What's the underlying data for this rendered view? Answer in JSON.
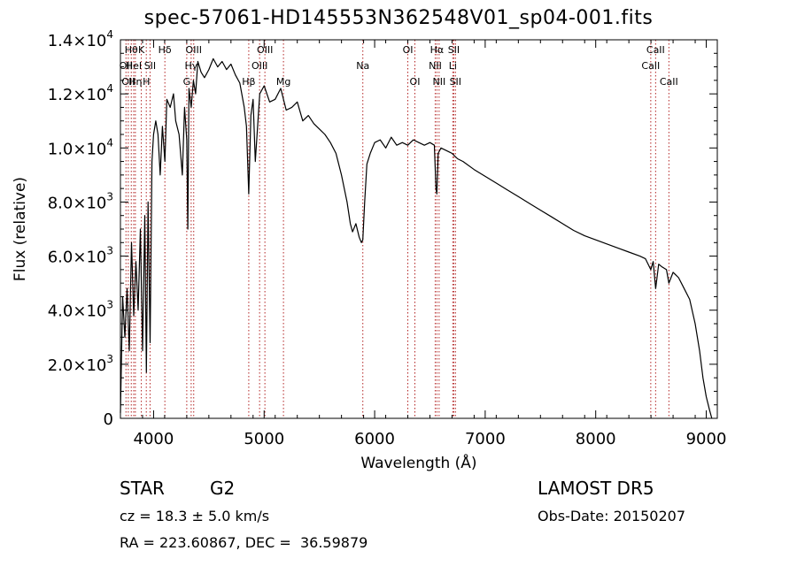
{
  "title": "spec-57061-HD145553N362548V01_sp04-001.fits",
  "info": {
    "class": "STAR",
    "subclass": "G2",
    "survey": "LAMOST DR5",
    "cz": "cz = 18.3 ± 5.0 km/s",
    "obs_date": "Obs-Date: 20150207",
    "coords": "RA = 223.60867, DEC =  36.59879"
  },
  "chart_data": {
    "type": "line",
    "title": "spec-57061-HD145553N362548V01_sp04-001.fits",
    "xlabel": "Wavelength (Å)",
    "ylabel": "Flux (relative)",
    "xlim": [
      3700,
      9100
    ],
    "ylim": [
      0,
      14000
    ],
    "x_ticks": [
      4000,
      5000,
      6000,
      7000,
      8000,
      9000
    ],
    "x_tick_labels": [
      "4000",
      "5000",
      "6000",
      "7000",
      "8000",
      "9000"
    ],
    "y_ticks": [
      0,
      2000,
      4000,
      6000,
      8000,
      10000,
      12000,
      14000
    ],
    "y_tick_labels": [
      {
        "mant": "0",
        "exp": ""
      },
      {
        "mant": "2.0×10",
        "exp": "3"
      },
      {
        "mant": "4.0×10",
        "exp": "3"
      },
      {
        "mant": "6.0×10",
        "exp": "3"
      },
      {
        "mant": "8.0×10",
        "exp": "3"
      },
      {
        "mant": "1.0×10",
        "exp": "4"
      },
      {
        "mant": "1.2×10",
        "exp": "4"
      },
      {
        "mant": "1.4×10",
        "exp": "4"
      }
    ],
    "line_color": "#000000",
    "marker_color": "#b22222",
    "series": [
      {
        "x": [
          3700,
          3720,
          3740,
          3760,
          3780,
          3800,
          3820,
          3840,
          3860,
          3880,
          3900,
          3920,
          3935,
          3950,
          3968,
          3985,
          4000,
          4020,
          4040,
          4060,
          4080,
          4102,
          4120,
          4150,
          4180,
          4200,
          4230,
          4260,
          4280,
          4300,
          4310,
          4320,
          4340,
          4360,
          4380,
          4400,
          4430,
          4460,
          4500,
          4540,
          4580,
          4620,
          4660,
          4700,
          4740,
          4780,
          4820,
          4840,
          4861,
          4880,
          4900,
          4920,
          4960,
          5000,
          5050,
          5100,
          5150,
          5200,
          5250,
          5300,
          5350,
          5400,
          5450,
          5500,
          5550,
          5600,
          5650,
          5700,
          5750,
          5780,
          5800,
          5830,
          5860,
          5880,
          5893,
          5910,
          5930,
          5960,
          6000,
          6050,
          6100,
          6150,
          6200,
          6250,
          6300,
          6350,
          6400,
          6450,
          6500,
          6540,
          6555,
          6563,
          6575,
          6600,
          6650,
          6700,
          6750,
          6800,
          6900,
          7000,
          7100,
          7200,
          7300,
          7400,
          7500,
          7600,
          7700,
          7800,
          7900,
          8000,
          8100,
          8200,
          8300,
          8400,
          8450,
          8498,
          8520,
          8542,
          8570,
          8600,
          8640,
          8662,
          8700,
          8750,
          8800,
          8850,
          8900,
          8940,
          8970,
          9000,
          9030,
          9050
        ],
        "y": [
          200,
          4500,
          3000,
          4800,
          2500,
          6500,
          3800,
          5800,
          4000,
          7000,
          2500,
          7500,
          1700,
          8000,
          2800,
          9500,
          10500,
          11000,
          10500,
          9000,
          10800,
          9500,
          11800,
          11500,
          12000,
          11000,
          10500,
          9000,
          11500,
          10300,
          7000,
          12200,
          11500,
          12500,
          12000,
          13200,
          12800,
          12600,
          12900,
          13300,
          13000,
          13200,
          12900,
          13100,
          12700,
          12400,
          11500,
          10800,
          8300,
          11200,
          11800,
          9500,
          12000,
          12300,
          11700,
          11800,
          12200,
          11400,
          11500,
          11700,
          11000,
          11200,
          10900,
          10700,
          10500,
          10200,
          9800,
          9000,
          8000,
          7200,
          6900,
          7200,
          6700,
          6500,
          6600,
          8000,
          9400,
          9800,
          10200,
          10300,
          10000,
          10400,
          10100,
          10200,
          10100,
          10300,
          10200,
          10100,
          10200,
          10100,
          8500,
          8300,
          9800,
          10000,
          9900,
          9800,
          9600,
          9500,
          9200,
          8950,
          8700,
          8450,
          8200,
          7950,
          7700,
          7450,
          7200,
          6950,
          6750,
          6600,
          6450,
          6300,
          6150,
          6000,
          5900,
          5500,
          5800,
          4800,
          5700,
          5600,
          5500,
          5000,
          5400,
          5200,
          4800,
          4400,
          3500,
          2500,
          1500,
          800,
          300,
          0
        ]
      }
    ],
    "line_markers": [
      {
        "x": 3750,
        "label": "OII",
        "row": 2
      },
      {
        "x": 3771,
        "label": "OII",
        "row": 3
      },
      {
        "x": 3798,
        "label": "Hθ",
        "row": 1
      },
      {
        "x": 3820,
        "label": "HeI",
        "row": 2
      },
      {
        "x": 3835,
        "label": "Hη",
        "row": 3
      },
      {
        "x": 3889,
        "label": "K",
        "row": 1
      },
      {
        "x": 3934,
        "label": "H",
        "row": 3
      },
      {
        "x": 3968,
        "label": "SII",
        "row": 2
      },
      {
        "x": 4102,
        "label": "Hδ",
        "row": 1
      },
      {
        "x": 4300,
        "label": "G",
        "row": 3
      },
      {
        "x": 4340,
        "label": "Hγ",
        "row": 2
      },
      {
        "x": 4363,
        "label": "OIII",
        "row": 1
      },
      {
        "x": 4861,
        "label": "Hβ",
        "row": 3
      },
      {
        "x": 4959,
        "label": "OIII",
        "row": 2
      },
      {
        "x": 5007,
        "label": "OIII",
        "row": 1
      },
      {
        "x": 5175,
        "label": "Mg",
        "row": 3
      },
      {
        "x": 5893,
        "label": "Na",
        "row": 2
      },
      {
        "x": 6300,
        "label": "OI",
        "row": 1
      },
      {
        "x": 6364,
        "label": "OI",
        "row": 3
      },
      {
        "x": 6548,
        "label": "NII",
        "row": 2
      },
      {
        "x": 6563,
        "label": "Hα",
        "row": 1
      },
      {
        "x": 6583,
        "label": "NII",
        "row": 3
      },
      {
        "x": 6707,
        "label": "Li",
        "row": 2
      },
      {
        "x": 6716,
        "label": "SII",
        "row": 1
      },
      {
        "x": 6731,
        "label": "SII",
        "row": 3
      },
      {
        "x": 8498,
        "label": "CaII",
        "row": 2
      },
      {
        "x": 8542,
        "label": "CaII",
        "row": 1
      },
      {
        "x": 8662,
        "label": "CaII",
        "row": 3
      }
    ]
  }
}
